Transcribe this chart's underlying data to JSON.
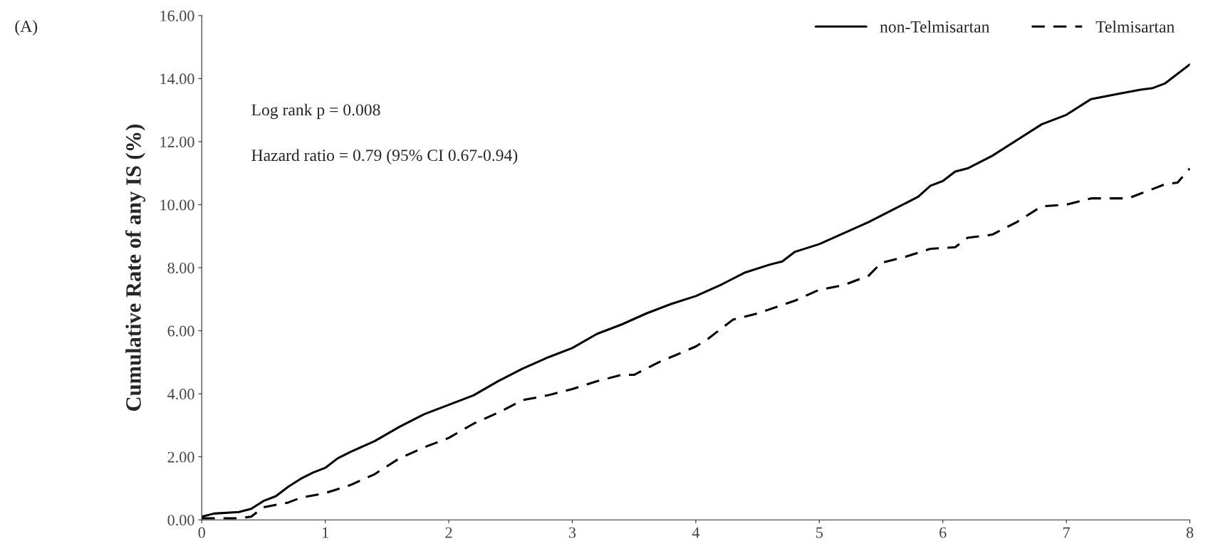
{
  "chart_data": {
    "type": "line",
    "ylabel": "Cumulative Rate of any IS (%)",
    "annotations": [
      "(A)",
      "Log rank p = 0.008",
      "Hazard ratio = 0.79 (95% CI 0.67-0.94)"
    ],
    "xlim": [
      0,
      8
    ],
    "xticks": [
      0,
      1,
      2,
      3,
      4,
      5,
      6,
      7,
      8
    ],
    "ylim": [
      0,
      16
    ],
    "yticks": [
      {
        "value": 0,
        "label": "0.00"
      },
      {
        "value": 2,
        "label": "2.00"
      },
      {
        "value": 4,
        "label": "4.00"
      },
      {
        "value": 6,
        "label": "6.00"
      },
      {
        "value": 8,
        "label": "8.00"
      },
      {
        "value": 10,
        "label": "10.00"
      },
      {
        "value": 12,
        "label": "12.00"
      },
      {
        "value": 14,
        "label": "14.00"
      },
      {
        "value": 16,
        "label": "16.00"
      }
    ],
    "grid": false,
    "legend": "top right",
    "series": [
      {
        "name": "non-Telmisartan",
        "color": "#000000",
        "line_style": "solid",
        "x": [
          0,
          0.1,
          0.3,
          0.4,
          0.5,
          0.6,
          0.7,
          0.8,
          0.9,
          1.0,
          1.1,
          1.2,
          1.4,
          1.6,
          1.8,
          2.0,
          2.2,
          2.4,
          2.6,
          2.8,
          3.0,
          3.2,
          3.4,
          3.6,
          3.8,
          4.0,
          4.2,
          4.4,
          4.6,
          4.7,
          4.8,
          5.0,
          5.2,
          5.4,
          5.6,
          5.8,
          5.9,
          6.0,
          6.1,
          6.2,
          6.4,
          6.6,
          6.8,
          7.0,
          7.2,
          7.4,
          7.6,
          7.7,
          7.8,
          8.0
        ],
        "values": [
          0.1,
          0.2,
          0.25,
          0.35,
          0.6,
          0.75,
          1.05,
          1.3,
          1.5,
          1.65,
          1.95,
          2.15,
          2.5,
          2.95,
          3.35,
          3.65,
          3.95,
          4.4,
          4.8,
          5.15,
          5.45,
          5.9,
          6.2,
          6.55,
          6.85,
          7.1,
          7.45,
          7.85,
          8.1,
          8.2,
          8.5,
          8.75,
          9.1,
          9.45,
          9.85,
          10.25,
          10.6,
          10.75,
          11.05,
          11.15,
          11.55,
          12.05,
          12.55,
          12.85,
          13.35,
          13.5,
          13.65,
          13.7,
          13.85,
          14.45
        ]
      },
      {
        "name": "Telmisartan",
        "color": "#000000",
        "line_style": "dashed",
        "x": [
          0,
          0.3,
          0.4,
          0.5,
          0.7,
          0.8,
          1.0,
          1.2,
          1.4,
          1.6,
          1.8,
          2.0,
          2.2,
          2.4,
          2.6,
          2.8,
          3.0,
          3.2,
          3.4,
          3.5,
          3.7,
          4.0,
          4.1,
          4.3,
          4.5,
          4.8,
          5.0,
          5.2,
          5.4,
          5.5,
          5.7,
          5.9,
          6.1,
          6.2,
          6.4,
          6.6,
          6.8,
          7.0,
          7.2,
          7.5,
          7.6,
          7.8,
          7.9,
          8.0
        ],
        "values": [
          0.05,
          0.05,
          0.1,
          0.4,
          0.55,
          0.7,
          0.85,
          1.1,
          1.45,
          1.95,
          2.3,
          2.6,
          3.05,
          3.4,
          3.8,
          3.95,
          4.15,
          4.4,
          4.6,
          4.6,
          5.0,
          5.5,
          5.75,
          6.35,
          6.55,
          6.95,
          7.3,
          7.45,
          7.75,
          8.15,
          8.35,
          8.6,
          8.65,
          8.95,
          9.05,
          9.45,
          9.95,
          10.0,
          10.2,
          10.2,
          10.35,
          10.65,
          10.7,
          11.15
        ]
      }
    ]
  }
}
